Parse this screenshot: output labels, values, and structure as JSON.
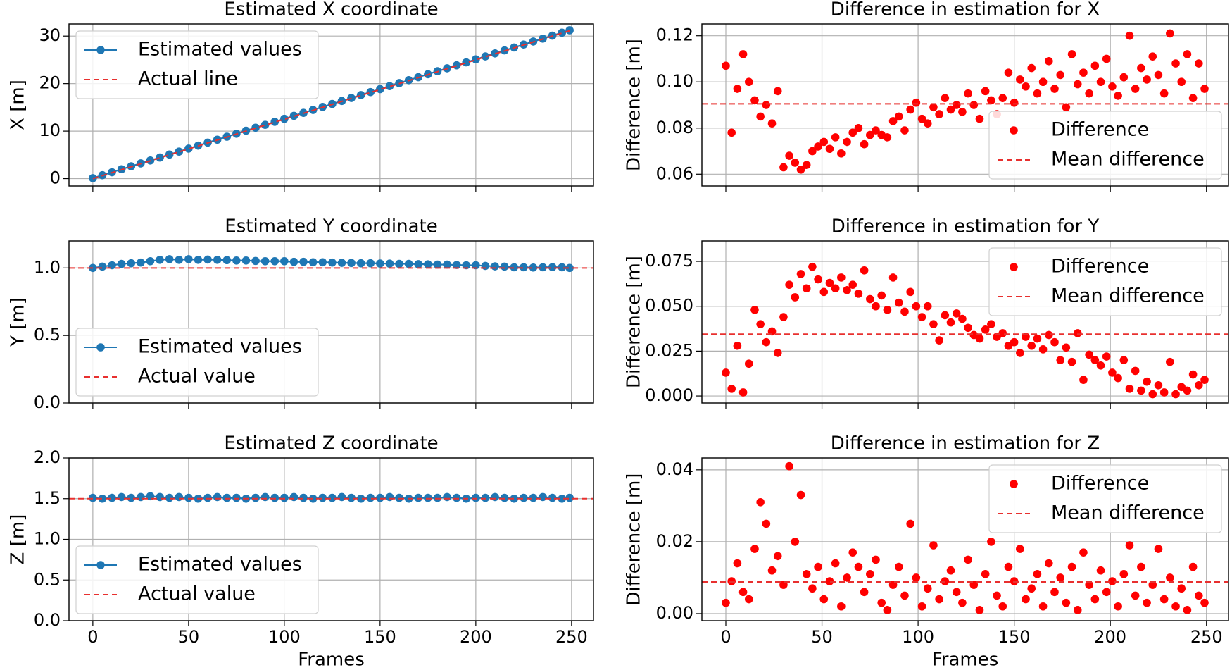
{
  "chart_data": [
    {
      "type": "line",
      "title": "Estimated X coordinate",
      "ylabel": "X [m]",
      "grid": true,
      "legend": "upper left",
      "xtick_labels": false,
      "xlim": [
        -12.45,
        261.45
      ],
      "xticks": [
        0,
        50,
        100,
        150,
        200,
        250
      ],
      "ylim": [
        -1.55,
        32.55
      ],
      "yticks": [
        0,
        10,
        20,
        30
      ],
      "x": [
        0,
        5,
        10,
        15,
        20,
        25,
        30,
        35,
        40,
        45,
        50,
        55,
        60,
        65,
        70,
        75,
        80,
        85,
        90,
        95,
        100,
        105,
        110,
        115,
        120,
        125,
        130,
        135,
        140,
        145,
        150,
        155,
        160,
        165,
        170,
        175,
        180,
        185,
        190,
        195,
        200,
        205,
        210,
        215,
        220,
        225,
        230,
        235,
        240,
        245,
        249
      ],
      "series": [
        {
          "name": "Estimated values",
          "color": "#1f77b4",
          "linestyle": "solid",
          "marker": true,
          "values": [
            0.1,
            0.72,
            1.34,
            1.97,
            2.59,
            3.21,
            3.82,
            4.44,
            5.07,
            5.69,
            6.32,
            6.95,
            7.58,
            8.2,
            8.83,
            9.45,
            10.08,
            10.71,
            11.33,
            11.96,
            12.59,
            13.21,
            13.84,
            14.46,
            15.09,
            15.71,
            16.34,
            16.97,
            17.59,
            18.22,
            18.84,
            19.47,
            20.1,
            20.72,
            21.35,
            21.97,
            22.6,
            23.22,
            23.85,
            24.47,
            25.1,
            25.72,
            26.35,
            26.98,
            27.6,
            28.23,
            28.86,
            29.47,
            30.1,
            30.72,
            31.22
          ]
        },
        {
          "name": "Actual line",
          "color": "#e8302f",
          "linestyle": "dashed",
          "marker": false,
          "values": [
            0,
            0.625,
            1.25,
            1.875,
            2.5,
            3.125,
            3.75,
            4.375,
            5,
            5.625,
            6.25,
            6.875,
            7.5,
            8.125,
            8.75,
            9.375,
            10,
            10.625,
            11.25,
            11.875,
            12.5,
            13.125,
            13.75,
            14.375,
            15,
            15.625,
            16.25,
            16.875,
            17.5,
            18.125,
            18.75,
            19.375,
            20,
            20.625,
            21.25,
            21.875,
            22.5,
            23.125,
            23.75,
            24.375,
            25,
            25.625,
            26.25,
            26.875,
            27.5,
            28.125,
            28.75,
            29.375,
            30,
            30.625,
            31.125
          ]
        }
      ]
    },
    {
      "type": "scatter",
      "title": "Difference in estimation for X",
      "ylabel": "Difference [m]",
      "grid": true,
      "legend": "lower right",
      "xtick_labels": false,
      "xlim": [
        -12.45,
        261.45
      ],
      "xticks": [
        0,
        50,
        100,
        150,
        200,
        250
      ],
      "ylim": [
        0.0549,
        0.1251
      ],
      "yticks": [
        0.06,
        0.08,
        {
          "value": 0.1,
          "label": "0.10"
        },
        0.12
      ],
      "x": [
        0,
        3,
        6,
        9,
        12,
        15,
        18,
        21,
        24,
        27,
        30,
        33,
        36,
        39,
        42,
        45,
        48,
        51,
        54,
        57,
        60,
        63,
        66,
        69,
        72,
        75,
        78,
        81,
        84,
        87,
        90,
        93,
        96,
        99,
        102,
        105,
        108,
        111,
        114,
        117,
        120,
        123,
        126,
        129,
        132,
        135,
        138,
        141,
        144,
        147,
        150,
        153,
        156,
        159,
        162,
        165,
        168,
        171,
        174,
        177,
        180,
        183,
        186,
        189,
        192,
        195,
        198,
        201,
        204,
        207,
        210,
        213,
        216,
        219,
        222,
        225,
        228,
        231,
        234,
        237,
        240,
        243,
        246,
        249
      ],
      "series": [
        {
          "name": "Difference",
          "color": "#ff0000",
          "values": [
            0.107,
            0.078,
            0.097,
            0.112,
            0.1,
            0.092,
            0.085,
            0.09,
            0.082,
            0.096,
            0.063,
            0.068,
            0.065,
            0.062,
            0.064,
            0.07,
            0.072,
            0.074,
            0.071,
            0.076,
            0.069,
            0.074,
            0.078,
            0.08,
            0.073,
            0.077,
            0.079,
            0.077,
            0.076,
            0.083,
            0.085,
            0.079,
            0.088,
            0.091,
            0.084,
            0.082,
            0.089,
            0.086,
            0.093,
            0.088,
            0.09,
            0.087,
            0.095,
            0.09,
            0.084,
            0.096,
            0.092,
            0.086,
            0.093,
            0.104,
            0.091,
            0.101,
            0.098,
            0.106,
            0.095,
            0.1,
            0.109,
            0.097,
            0.103,
            0.089,
            0.112,
            0.099,
            0.104,
            0.095,
            0.107,
            0.1,
            0.11,
            0.098,
            0.094,
            0.102,
            0.12,
            0.097,
            0.106,
            0.101,
            0.111,
            0.103,
            0.095,
            0.121,
            0.108,
            0.1,
            0.112,
            0.093,
            0.108,
            0.097
          ]
        }
      ],
      "reference": {
        "name": "Mean difference",
        "value": 0.0905,
        "color": "#e8302f"
      }
    },
    {
      "type": "line",
      "title": "Estimated Y coordinate",
      "ylabel": "Y [m]",
      "grid": true,
      "legend": "lower left",
      "xtick_labels": false,
      "xlim": [
        -12.45,
        261.45
      ],
      "xticks": [
        0,
        50,
        100,
        150,
        200,
        250
      ],
      "ylim": [
        0,
        1.2
      ],
      "yticks": [
        {
          "value": 0,
          "label": "0.0"
        },
        0.5,
        {
          "value": 1,
          "label": "1.0"
        }
      ],
      "x": [
        0,
        5,
        10,
        15,
        20,
        25,
        30,
        35,
        40,
        45,
        50,
        55,
        60,
        65,
        70,
        75,
        80,
        85,
        90,
        95,
        100,
        105,
        110,
        115,
        120,
        125,
        130,
        135,
        140,
        145,
        150,
        155,
        160,
        165,
        170,
        175,
        180,
        185,
        190,
        195,
        200,
        205,
        210,
        215,
        220,
        225,
        230,
        235,
        240,
        245,
        249
      ],
      "series": [
        {
          "name": "Estimated values",
          "color": "#1f77b4",
          "linestyle": "solid",
          "marker": true,
          "values": [
            1.0,
            1.01,
            1.02,
            1.03,
            1.035,
            1.04,
            1.05,
            1.06,
            1.065,
            1.06,
            1.065,
            1.06,
            1.062,
            1.06,
            1.058,
            1.055,
            1.055,
            1.052,
            1.05,
            1.05,
            1.05,
            1.045,
            1.045,
            1.042,
            1.042,
            1.04,
            1.038,
            1.037,
            1.035,
            1.035,
            1.033,
            1.032,
            1.03,
            1.03,
            1.028,
            1.027,
            1.025,
            1.025,
            1.022,
            1.02,
            1.02,
            1.015,
            1.012,
            1.01,
            1.005,
            1.005,
            1.003,
            1.005,
            1.006,
            1.005,
            1.0
          ]
        }
      ],
      "reference": {
        "name": "Actual value",
        "value": 1.0,
        "color": "#e8302f"
      }
    },
    {
      "type": "scatter",
      "title": "Difference in estimation for Y",
      "ylabel": "Difference [m]",
      "grid": true,
      "legend": "upper right",
      "xtick_labels": false,
      "xlim": [
        -12.45,
        261.45
      ],
      "xticks": [
        0,
        50,
        100,
        150,
        200,
        250
      ],
      "ylim": [
        -0.0039,
        0.0864
      ],
      "yticks": [
        {
          "value": 0,
          "label": "0.000"
        },
        0.025,
        {
          "value": 0.05,
          "label": "0.050"
        },
        0.075
      ],
      "x": [
        0,
        3,
        6,
        9,
        12,
        15,
        18,
        21,
        24,
        27,
        30,
        33,
        36,
        39,
        42,
        45,
        48,
        51,
        54,
        57,
        60,
        63,
        66,
        69,
        72,
        75,
        78,
        81,
        84,
        87,
        90,
        93,
        96,
        99,
        102,
        105,
        108,
        111,
        114,
        117,
        120,
        123,
        126,
        129,
        132,
        135,
        138,
        141,
        144,
        147,
        150,
        153,
        156,
        159,
        162,
        165,
        168,
        171,
        174,
        177,
        180,
        183,
        186,
        189,
        192,
        195,
        198,
        201,
        204,
        207,
        210,
        213,
        216,
        219,
        222,
        225,
        228,
        231,
        234,
        237,
        240,
        243,
        246,
        249
      ],
      "series": [
        {
          "name": "Difference",
          "color": "#ff0000",
          "values": [
            0.013,
            0.004,
            0.028,
            0.002,
            0.018,
            0.048,
            0.04,
            0.03,
            0.036,
            0.024,
            0.044,
            0.062,
            0.055,
            0.068,
            0.06,
            0.072,
            0.065,
            0.058,
            0.063,
            0.06,
            0.066,
            0.059,
            0.062,
            0.057,
            0.07,
            0.054,
            0.05,
            0.056,
            0.048,
            0.066,
            0.052,
            0.047,
            0.058,
            0.05,
            0.044,
            0.05,
            0.04,
            0.031,
            0.045,
            0.041,
            0.046,
            0.043,
            0.038,
            0.034,
            0.032,
            0.037,
            0.04,
            0.033,
            0.035,
            0.028,
            0.03,
            0.024,
            0.033,
            0.028,
            0.032,
            0.026,
            0.034,
            0.03,
            0.02,
            0.027,
            0.019,
            0.035,
            0.009,
            0.023,
            0.02,
            0.017,
            0.022,
            0.013,
            0.01,
            0.02,
            0.004,
            0.014,
            0.003,
            0.008,
            0.001,
            0.006,
            0.002,
            0.019,
            0.001,
            0.005,
            0.003,
            0.012,
            0.006,
            0.009
          ]
        }
      ],
      "reference": {
        "name": "Mean difference",
        "value": 0.0345,
        "color": "#e8302f"
      }
    },
    {
      "type": "line",
      "title": "Estimated Z coordinate",
      "ylabel": "Z [m]",
      "xlabel": "Frames",
      "grid": true,
      "legend": "lower left",
      "xtick_labels": true,
      "xlim": [
        -12.45,
        261.45
      ],
      "xticks": [
        0,
        50,
        100,
        150,
        200,
        250
      ],
      "ylim": [
        0,
        2
      ],
      "yticks": [
        {
          "value": 0,
          "label": "0.0"
        },
        0.5,
        {
          "value": 1,
          "label": "1.0"
        },
        1.5,
        {
          "value": 2,
          "label": "2.0"
        }
      ],
      "x": [
        0,
        5,
        10,
        15,
        20,
        25,
        30,
        35,
        40,
        45,
        50,
        55,
        60,
        65,
        70,
        75,
        80,
        85,
        90,
        95,
        100,
        105,
        110,
        115,
        120,
        125,
        130,
        135,
        140,
        145,
        150,
        155,
        160,
        165,
        170,
        175,
        180,
        185,
        190,
        195,
        200,
        205,
        210,
        215,
        220,
        225,
        230,
        235,
        240,
        245,
        249
      ],
      "series": [
        {
          "name": "Estimated values",
          "color": "#1f77b4",
          "linestyle": "solid",
          "marker": true,
          "values": [
            1.51,
            1.5,
            1.51,
            1.52,
            1.51,
            1.52,
            1.53,
            1.52,
            1.51,
            1.52,
            1.51,
            1.5,
            1.51,
            1.52,
            1.51,
            1.51,
            1.5,
            1.51,
            1.52,
            1.51,
            1.51,
            1.52,
            1.51,
            1.5,
            1.51,
            1.51,
            1.52,
            1.51,
            1.5,
            1.51,
            1.51,
            1.52,
            1.51,
            1.5,
            1.51,
            1.51,
            1.51,
            1.52,
            1.51,
            1.5,
            1.51,
            1.51,
            1.52,
            1.51,
            1.5,
            1.51,
            1.51,
            1.52,
            1.51,
            1.5,
            1.51
          ]
        }
      ],
      "reference": {
        "name": "Actual value",
        "value": 1.5,
        "color": "#e8302f"
      }
    },
    {
      "type": "scatter",
      "title": "Difference in estimation for Z",
      "ylabel": "Difference [m]",
      "xlabel": "Frames",
      "grid": true,
      "legend": "upper right",
      "xtick_labels": true,
      "xlim": [
        -12.45,
        261.45
      ],
      "xticks": [
        0,
        50,
        100,
        150,
        200,
        250
      ],
      "ylim": [
        -0.00197,
        0.0433
      ],
      "yticks": [
        {
          "value": 0,
          "label": "0.00"
        },
        0.02,
        0.04
      ],
      "x": [
        0,
        3,
        6,
        9,
        12,
        15,
        18,
        21,
        24,
        27,
        30,
        33,
        36,
        39,
        42,
        45,
        48,
        51,
        54,
        57,
        60,
        63,
        66,
        69,
        72,
        75,
        78,
        81,
        84,
        87,
        90,
        93,
        96,
        99,
        102,
        105,
        108,
        111,
        114,
        117,
        120,
        123,
        126,
        129,
        132,
        135,
        138,
        141,
        144,
        147,
        150,
        153,
        156,
        159,
        162,
        165,
        168,
        171,
        174,
        177,
        180,
        183,
        186,
        189,
        192,
        195,
        198,
        201,
        204,
        207,
        210,
        213,
        216,
        219,
        222,
        225,
        228,
        231,
        234,
        237,
        240,
        243,
        246,
        249
      ],
      "series": [
        {
          "name": "Difference",
          "color": "#ff0000",
          "values": [
            0.003,
            0.009,
            0.014,
            0.006,
            0.004,
            0.018,
            0.031,
            0.025,
            0.012,
            0.016,
            0.008,
            0.041,
            0.02,
            0.033,
            0.011,
            0.007,
            0.013,
            0.004,
            0.009,
            0.014,
            0.002,
            0.01,
            0.017,
            0.013,
            0.006,
            0.011,
            0.015,
            0.003,
            0.001,
            0.008,
            0.013,
            0.005,
            0.025,
            0.01,
            0.002,
            0.007,
            0.019,
            0.004,
            0.009,
            0.012,
            0.006,
            0.003,
            0.015,
            0.008,
            0.001,
            0.011,
            0.02,
            0.005,
            0.002,
            0.013,
            0.009,
            0.018,
            0.004,
            0.007,
            0.011,
            0.002,
            0.014,
            0.006,
            0.01,
            0.003,
            0.013,
            0.001,
            0.017,
            0.008,
            0.004,
            0.012,
            0.006,
            0.009,
            0.002,
            0.011,
            0.019,
            0.005,
            0.013,
            0.003,
            0.008,
            0.018,
            0.004,
            0.01,
            0.002,
            0.007,
            0.001,
            0.013,
            0.005,
            0.003
          ]
        }
      ],
      "reference": {
        "name": "Mean difference",
        "value": 0.0088,
        "color": "#e8302f"
      }
    }
  ]
}
